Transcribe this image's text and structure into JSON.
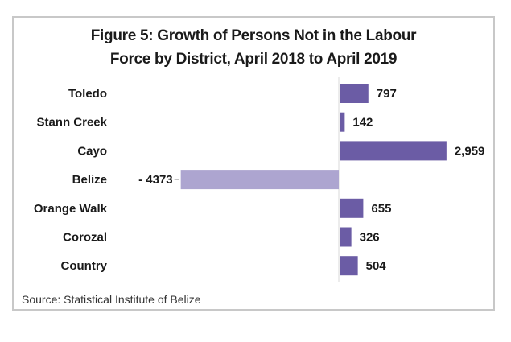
{
  "chart_data": {
    "type": "bar",
    "orientation": "horizontal",
    "title": "Figure 5: Growth of Persons Not in the Labour Force by District, April 2018 to April 2019",
    "title_lines": [
      "Figure 5: Growth of Persons Not in the Labour",
      "Force by District, April 2018 to April 2019"
    ],
    "categories": [
      "Toledo",
      "Stann Creek",
      "Cayo",
      "Belize",
      "Orange Walk",
      "Corozal",
      "Country"
    ],
    "values": [
      797,
      142,
      2959,
      -4373,
      655,
      326,
      504
    ],
    "data_labels": [
      "797",
      "142",
      "2,959",
      "- 4373",
      "655",
      "326",
      "504"
    ],
    "xlim": [
      -4373,
      2959
    ],
    "grid": false,
    "legend": "none",
    "colors": {
      "positive": "#6b5ca5",
      "negative": "#ada5d0"
    }
  },
  "source": "Source: Statistical Institute of Belize"
}
